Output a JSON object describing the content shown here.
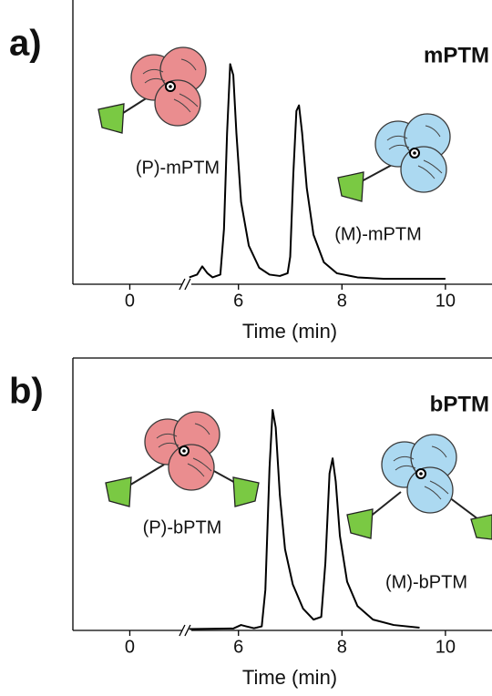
{
  "chart_data": [
    {
      "type": "line",
      "panel_label": "a)",
      "title": "mPTM",
      "xlabel": "Time (min)",
      "annotations": [
        "(P)-mPTM",
        "(M)-mPTM"
      ],
      "x": [
        5.05,
        5.2,
        5.3,
        5.4,
        5.5,
        5.65,
        5.72,
        5.78,
        5.84,
        5.9,
        5.96,
        6.05,
        6.2,
        6.4,
        6.6,
        6.8,
        6.95,
        7.0,
        7.06,
        7.12,
        7.17,
        7.23,
        7.32,
        7.45,
        7.65,
        7.9,
        8.3,
        8.8,
        9.5,
        10.0
      ],
      "series": [
        {
          "color": "#000000",
          "values": [
            2.5,
            3.5,
            6.5,
            4,
            2.5,
            3.5,
            20,
            55,
            80,
            76,
            55,
            30,
            14,
            6,
            3.5,
            3,
            4,
            10,
            40,
            63,
            65,
            55,
            35,
            18,
            8,
            4,
            2.5,
            2,
            2,
            2
          ]
        }
      ],
      "xlim": [
        -1.1,
        10.9
      ],
      "xbreak": [
        1.1,
        5.0
      ],
      "xticks": [
        0,
        6,
        8,
        10
      ],
      "ylim": [
        0,
        100
      ]
    },
    {
      "type": "line",
      "panel_label": "b)",
      "title": "bPTM",
      "xlabel": "Time (min)",
      "annotations": [
        "(P)-bPTM",
        "(M)-bPTM"
      ],
      "x": [
        5.05,
        5.9,
        6.05,
        6.15,
        6.3,
        6.45,
        6.52,
        6.6,
        6.66,
        6.72,
        6.8,
        6.9,
        7.05,
        7.25,
        7.45,
        7.6,
        7.68,
        7.76,
        7.82,
        7.88,
        7.96,
        8.1,
        8.3,
        8.6,
        9.0,
        9.5
      ],
      "series": [
        {
          "color": "#000000",
          "values": [
            0.5,
            0.7,
            2,
            1.5,
            0.8,
            1.5,
            15,
            60,
            81.5,
            75,
            50,
            30,
            17,
            8,
            4,
            5,
            25,
            58,
            63.6,
            55,
            35,
            18,
            9,
            4,
            2,
            1
          ]
        }
      ],
      "xlim": [
        -1.1,
        10.9
      ],
      "xbreak": [
        1.1,
        5.0
      ],
      "xticks": [
        0,
        6,
        8,
        10
      ],
      "ylim": [
        0,
        100
      ]
    }
  ]
}
